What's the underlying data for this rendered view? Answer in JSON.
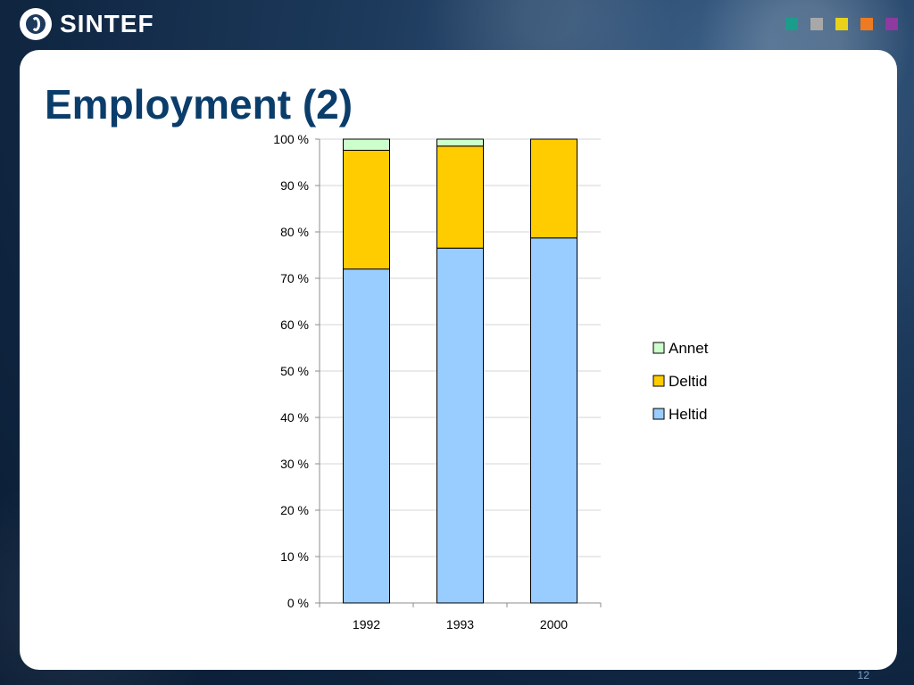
{
  "header": {
    "brand": "SINTEF",
    "squares": [
      {
        "name": "teal-square",
        "color": "#1c9c8a"
      },
      {
        "name": "gray-square",
        "color": "#a8a8a8"
      },
      {
        "name": "yellow-square",
        "color": "#e8d21a"
      },
      {
        "name": "orange-square",
        "color": "#ee7a22"
      },
      {
        "name": "purple-square",
        "color": "#8e3aa1"
      }
    ]
  },
  "slide": {
    "title": "Employment (2)",
    "page_number": "12"
  },
  "chart_data": {
    "type": "bar",
    "stacked": "percent",
    "categories": [
      "1992",
      "1993",
      "2000"
    ],
    "series": [
      {
        "name": "Heltid",
        "color": "#99ccff",
        "values": [
          72,
          76.5,
          78.7
        ]
      },
      {
        "name": "Deltid",
        "color": "#ffcc00",
        "values": [
          25.6,
          22,
          21.3
        ]
      },
      {
        "name": "Annet",
        "color": "#ccffcc",
        "values": [
          2.4,
          1.5,
          0
        ]
      }
    ],
    "legend_order": [
      "Annet",
      "Deltid",
      "Heltid"
    ],
    "legend_position": "right",
    "y_ticks": [
      "0 %",
      "10 %",
      "20 %",
      "30 %",
      "40 %",
      "50 %",
      "60 %",
      "70 %",
      "80 %",
      "90 %",
      "100 %"
    ],
    "ylim": [
      0,
      100
    ],
    "grid": true,
    "title": "",
    "xlabel": "",
    "ylabel": ""
  }
}
